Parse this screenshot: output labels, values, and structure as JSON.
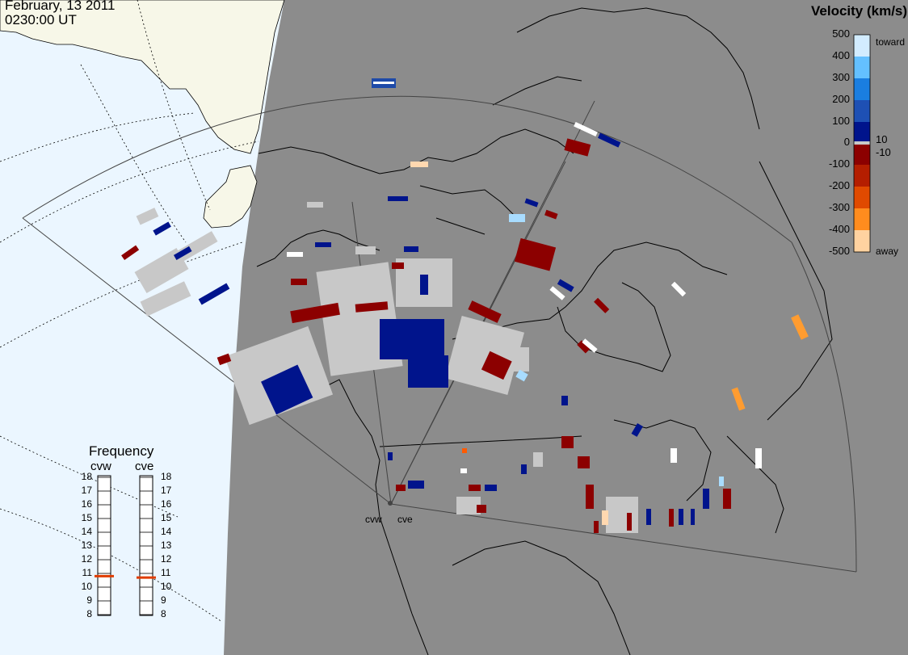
{
  "header": {
    "date": "February, 13 2011",
    "time": "0230:00 UT"
  },
  "colorbar": {
    "title": "Velocity (km/s)",
    "ticks": [
      "500",
      "400",
      "300",
      "200",
      "100",
      "0",
      "-100",
      "-200",
      "-300",
      "-400",
      "-500"
    ],
    "inner_labels": [
      "10",
      "-10"
    ],
    "toward_label": "toward",
    "away_label": "away"
  },
  "frequency": {
    "title": "Frequency",
    "columns": [
      {
        "name": "cvw",
        "mhz": 10.8
      },
      {
        "name": "cve",
        "mhz": 10.7
      }
    ],
    "ticks": [
      "18",
      "17",
      "16",
      "15",
      "14",
      "13",
      "12",
      "11",
      "10",
      "9",
      "8"
    ]
  },
  "stations": [
    {
      "name": "cvw"
    },
    {
      "name": "cve"
    }
  ],
  "colors": {
    "ocean": "#ebf6ff",
    "night_shade": "#8c8c8c",
    "land_day": "#f7f7e8",
    "ground_scatter": "#c8c8c8",
    "toward_dark": "#00148c",
    "away_dark": "#8c0000",
    "frequency_marker": "#e03c00"
  }
}
